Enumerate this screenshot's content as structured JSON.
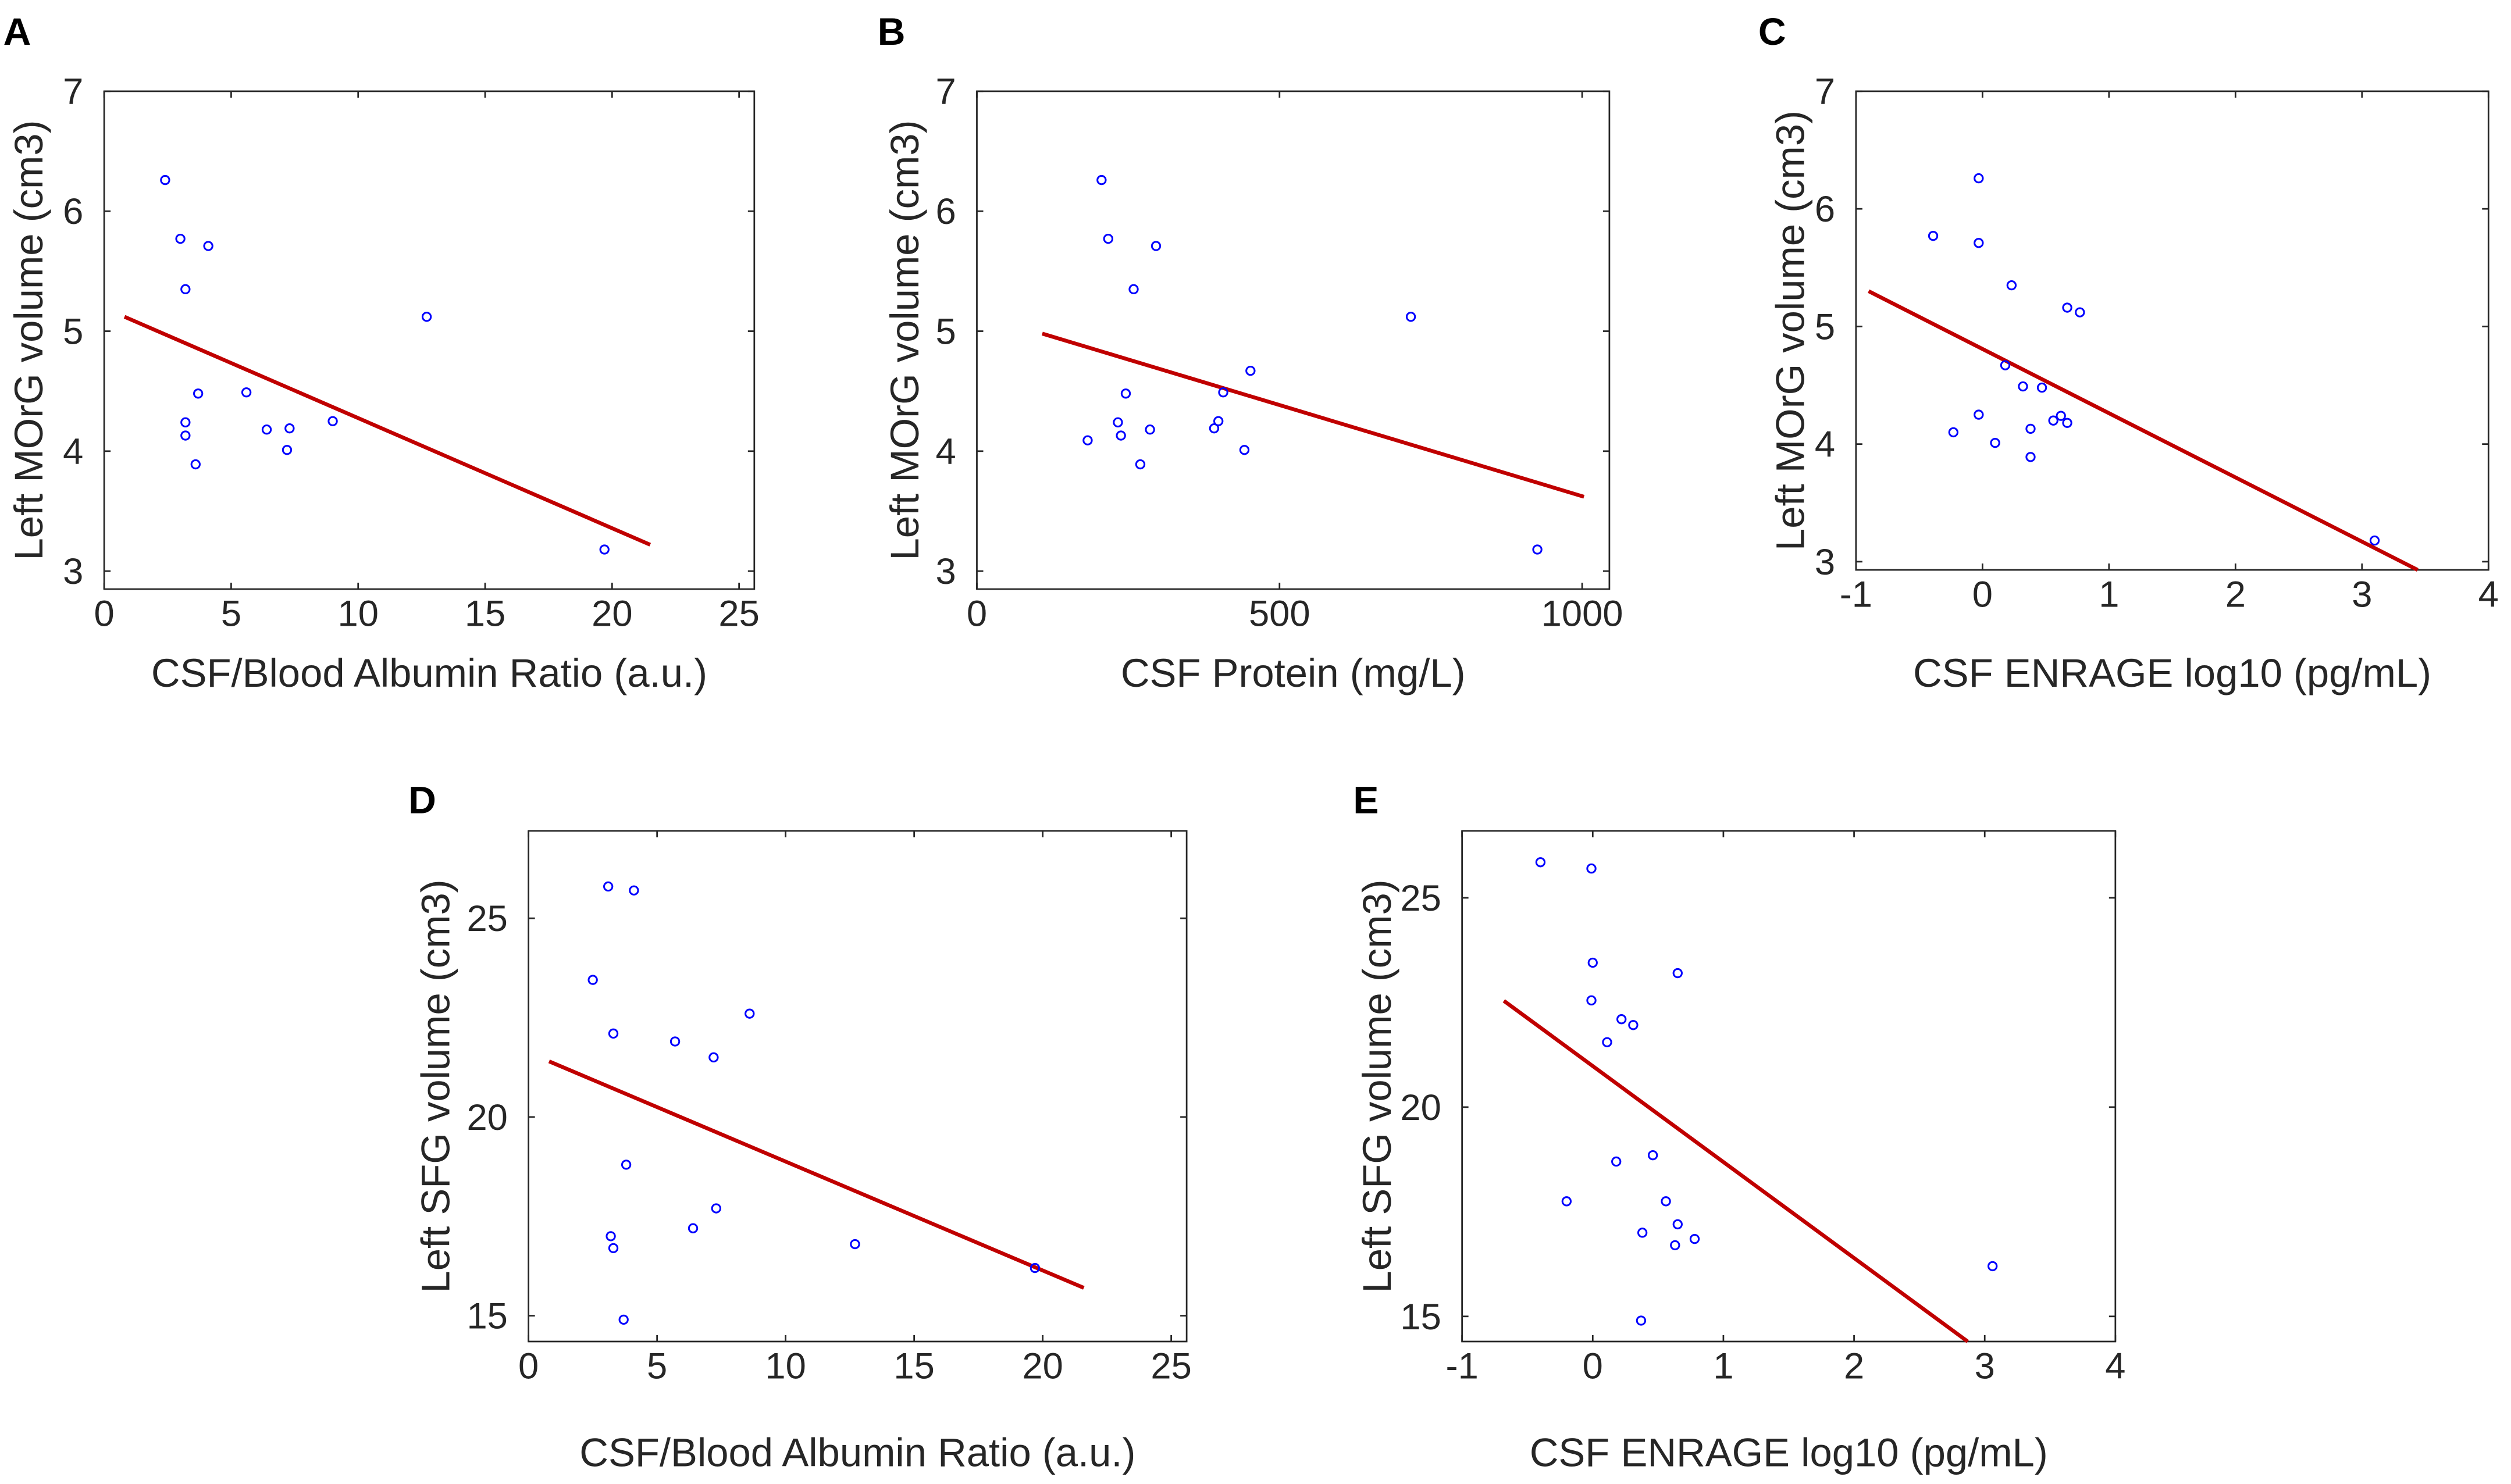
{
  "colors": {
    "marker_color": "#0000ff",
    "line_color": "#c00000",
    "axis_color": "#262626"
  },
  "chart_data": [
    {
      "panel_label": "A",
      "type": "scatter",
      "xlabel": "CSF/Blood Albumin Ratio (a.u.)",
      "ylabel": "Left MOrG volume (cm3)",
      "xlim": [
        0,
        25.6
      ],
      "ylim": [
        2.85,
        7
      ],
      "xticks": [
        0,
        5,
        10,
        15,
        20,
        25
      ],
      "yticks": [
        3,
        4,
        5,
        6,
        7
      ],
      "points": {
        "x": [
          2.4,
          3.0,
          4.1,
          3.2,
          12.7,
          3.7,
          5.6,
          3.2,
          9.0,
          6.4,
          7.3,
          3.2,
          7.2,
          3.6,
          19.7
        ],
        "y": [
          6.26,
          5.77,
          5.71,
          5.35,
          5.12,
          4.48,
          4.49,
          4.24,
          4.25,
          4.18,
          4.19,
          4.13,
          4.01,
          3.89,
          3.18
        ]
      },
      "fit_line": {
        "x": [
          0.8,
          21.5
        ],
        "y": [
          5.12,
          3.22
        ]
      }
    },
    {
      "panel_label": "B",
      "type": "scatter",
      "xlabel": "CSF Protein (mg/L)",
      "ylabel": "Left MOrG volume (cm3)",
      "xlim": [
        0,
        1045
      ],
      "ylim": [
        2.85,
        7
      ],
      "xticks": [
        0,
        500,
        1000
      ],
      "yticks": [
        3,
        4,
        5,
        6,
        7
      ],
      "points": {
        "x": [
          206,
          217,
          296,
          259,
          717,
          452,
          246,
          407,
          233,
          399,
          286,
          392,
          238,
          183,
          442,
          270,
          926
        ],
        "y": [
          6.26,
          5.77,
          5.71,
          5.35,
          5.12,
          4.67,
          4.48,
          4.49,
          4.24,
          4.25,
          4.18,
          4.19,
          4.13,
          4.09,
          4.01,
          3.89,
          3.18
        ]
      },
      "fit_line": {
        "x": [
          108,
          1003
        ],
        "y": [
          4.98,
          3.62
        ]
      }
    },
    {
      "panel_label": "C",
      "type": "scatter",
      "xlabel": "CSF ENRAGE log10 (pg/mL)",
      "ylabel": "Left MOrG volume (cm3)",
      "xlim": [
        -1,
        4
      ],
      "ylim": [
        2.93,
        7
      ],
      "xticks": [
        -1,
        0,
        1,
        2,
        3,
        4
      ],
      "yticks": [
        3,
        4,
        5,
        6,
        7
      ],
      "points": {
        "x": [
          -0.03,
          -0.39,
          -0.03,
          0.23,
          0.67,
          0.77,
          0.18,
          0.32,
          0.47,
          -0.03,
          -0.23,
          0.56,
          0.62,
          0.67,
          0.38,
          0.1,
          0.38,
          3.1
        ],
        "y": [
          6.26,
          5.77,
          5.71,
          5.35,
          5.16,
          5.12,
          4.67,
          4.49,
          4.48,
          4.25,
          4.1,
          4.2,
          4.24,
          4.18,
          4.13,
          4.01,
          3.89,
          3.18
        ]
      },
      "fit_line": {
        "x": [
          -0.9,
          3.44
        ],
        "y": [
          5.3,
          2.93
        ]
      }
    },
    {
      "panel_label": "D",
      "type": "scatter",
      "xlabel": "CSF/Blood Albumin Ratio (a.u.)",
      "ylabel": "Left SFG volume (cm3)",
      "xlim": [
        0,
        25.6
      ],
      "ylim": [
        14.35,
        27.2
      ],
      "xticks": [
        0,
        5,
        10,
        15,
        20,
        25
      ],
      "yticks": [
        15,
        20,
        25
      ],
      "points": {
        "x": [
          3.1,
          4.1,
          2.5,
          8.6,
          3.3,
          5.7,
          7.2,
          3.8,
          7.3,
          6.4,
          3.2,
          3.3,
          12.7,
          19.7,
          3.7
        ],
        "y": [
          25.8,
          25.7,
          23.45,
          22.6,
          22.1,
          21.9,
          21.5,
          18.8,
          17.7,
          17.2,
          17.0,
          16.7,
          16.8,
          16.2,
          14.9
        ]
      },
      "fit_line": {
        "x": [
          0.8,
          21.6
        ],
        "y": [
          21.4,
          15.7
        ]
      }
    },
    {
      "panel_label": "E",
      "type": "scatter",
      "xlabel": "CSF ENRAGE log10 (pg/mL)",
      "ylabel": "Left SFG volume (cm3)",
      "xlim": [
        -1,
        4
      ],
      "ylim": [
        14.4,
        26.6
      ],
      "xticks": [
        -1,
        0,
        1,
        2,
        3,
        4
      ],
      "yticks": [
        15,
        20,
        25
      ],
      "points": {
        "x": [
          -0.4,
          -0.01,
          0.0,
          0.65,
          -0.01,
          0.22,
          0.31,
          0.11,
          0.46,
          0.18,
          -0.2,
          0.56,
          0.65,
          0.38,
          0.78,
          0.63,
          3.06,
          0.37
        ],
        "y": [
          25.85,
          25.7,
          23.45,
          23.2,
          22.55,
          22.1,
          21.96,
          21.55,
          18.85,
          18.7,
          17.75,
          17.75,
          17.2,
          17.0,
          16.85,
          16.7,
          16.2,
          14.9
        ]
      },
      "fit_line": {
        "x": [
          -0.68,
          2.87
        ],
        "y": [
          22.54,
          14.4
        ]
      }
    }
  ]
}
